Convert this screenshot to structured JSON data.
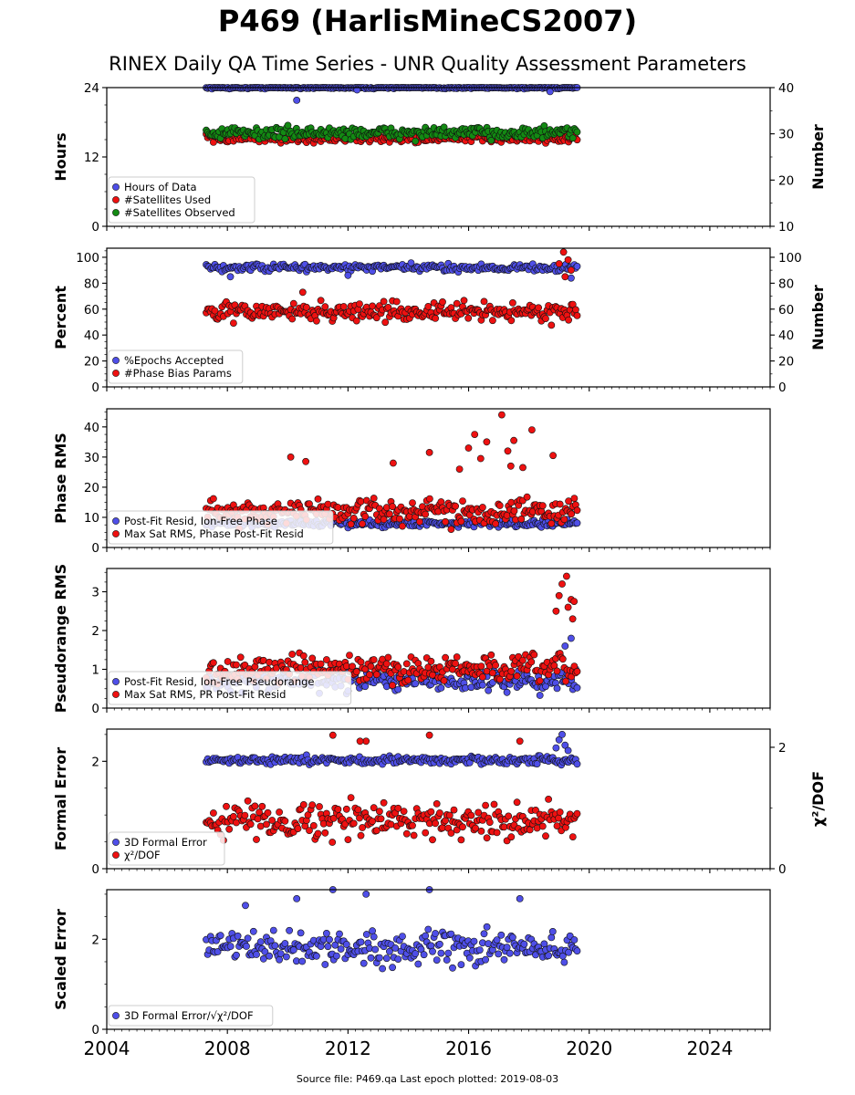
{
  "figure": {
    "title": "P469 (HarlisMineCS2007)",
    "subtitle": "RINEX Daily QA Time Series - UNR Quality Assessment Parameters",
    "footer": "Source file: P469.qa Last epoch plotted: 2019-08-03"
  },
  "colors": {
    "blue": "#4f4fe8",
    "red": "#ee1111",
    "green": "#138a13",
    "edge": "#111111"
  },
  "chart_data": [
    {
      "type": "scatter",
      "ylabel": "Hours",
      "ylabel_right": "Number",
      "ylim": [
        0,
        24
      ],
      "yticks": [
        0,
        12,
        24
      ],
      "ylim_right": [
        10,
        40
      ],
      "yticks_right": [
        10,
        20,
        30,
        40
      ],
      "xlim": [
        2004,
        2026
      ],
      "xticks": [
        2004,
        2008,
        2012,
        2016,
        2020,
        2024
      ],
      "grid": false,
      "legend": "lower-left",
      "series": [
        {
          "name": "Hours of Data",
          "color": "blue",
          "axis": "left",
          "start": 2007.3,
          "end": 2019.6,
          "base": 24,
          "spread": 0.15,
          "outliers": [
            [
              2010.3,
              21.8
            ],
            [
              2018.7,
              23.3
            ],
            [
              2012.3,
              23.6
            ]
          ]
        },
        {
          "name": "#Satellites Used",
          "color": "red",
          "axis": "right",
          "start": 2007.3,
          "end": 2019.6,
          "base": 29,
          "spread": 0.6,
          "outliers": []
        },
        {
          "name": "#Satellites Observed",
          "color": "green",
          "axis": "right",
          "start": 2007.3,
          "end": 2019.6,
          "base": 30.2,
          "spread": 0.9,
          "outliers": []
        }
      ]
    },
    {
      "type": "scatter",
      "ylabel": "Percent",
      "ylabel_right": "Number",
      "ylim": [
        0,
        107
      ],
      "yticks": [
        0,
        20,
        40,
        60,
        80,
        100
      ],
      "ylim_right": [
        0,
        107
      ],
      "yticks_right": [
        0,
        20,
        40,
        60,
        80,
        100
      ],
      "xlim": [
        2004,
        2026
      ],
      "xticks": [
        2004,
        2008,
        2012,
        2016,
        2020,
        2024
      ],
      "grid": false,
      "legend": "lower-left",
      "series": [
        {
          "name": "%Epochs Accepted",
          "color": "blue",
          "axis": "left",
          "start": 2007.3,
          "end": 2019.6,
          "base": 92,
          "spread": 2.0,
          "outliers": [
            [
              2008.1,
              85
            ],
            [
              2012.0,
              86
            ],
            [
              2019.4,
              84
            ]
          ]
        },
        {
          "name": "#Phase Bias Params",
          "color": "red",
          "axis": "right",
          "start": 2007.3,
          "end": 2019.6,
          "base": 58,
          "spread": 5.0,
          "outliers": [
            [
              2019.15,
              104
            ],
            [
              2019.3,
              98
            ],
            [
              2019.0,
              95
            ],
            [
              2019.4,
              90
            ],
            [
              2019.2,
              85
            ],
            [
              2010.5,
              73
            ]
          ]
        }
      ]
    },
    {
      "type": "scatter",
      "ylabel": "Phase RMS",
      "ylim": [
        0,
        46
      ],
      "yticks": [
        0,
        10,
        20,
        30,
        40
      ],
      "xlim": [
        2004,
        2026
      ],
      "xticks": [
        2004,
        2008,
        2012,
        2016,
        2020,
        2024
      ],
      "grid": false,
      "legend": "lower-left",
      "series": [
        {
          "name": "Post-Fit Resid, Ion-Free Phase",
          "color": "blue",
          "axis": "left",
          "start": 2007.3,
          "end": 2019.6,
          "base": 8,
          "spread": 0.8,
          "outliers": []
        },
        {
          "name": "Max Sat RMS, Phase Post-Fit Resid",
          "color": "red",
          "axis": "left",
          "start": 2007.3,
          "end": 2019.6,
          "base": 12,
          "spread": 3.0,
          "outliers": [
            [
              2017.1,
              44
            ],
            [
              2016.2,
              37.5
            ],
            [
              2018.1,
              39
            ],
            [
              2016.6,
              35
            ],
            [
              2017.5,
              35.5
            ],
            [
              2014.7,
              31.5
            ],
            [
              2016.0,
              33
            ],
            [
              2017.3,
              32
            ],
            [
              2010.1,
              30
            ],
            [
              2010.6,
              28.5
            ],
            [
              2016.4,
              29.5
            ],
            [
              2015.7,
              26
            ],
            [
              2017.4,
              27
            ],
            [
              2017.8,
              26.5
            ],
            [
              2018.8,
              30.5
            ],
            [
              2013.5,
              28
            ]
          ]
        }
      ]
    },
    {
      "type": "scatter",
      "ylabel": "Pseudorange RMS",
      "ylim": [
        0,
        3.6
      ],
      "yticks": [
        0,
        1,
        2,
        3
      ],
      "xlim": [
        2004,
        2026
      ],
      "xticks": [
        2004,
        2008,
        2012,
        2016,
        2020,
        2024
      ],
      "grid": false,
      "legend": "lower-left",
      "series": [
        {
          "name": "Post-Fit Resid, Ion-Free Pseudorange",
          "color": "blue",
          "axis": "left",
          "start": 2007.3,
          "end": 2019.6,
          "base": 0.7,
          "spread": 0.18,
          "outliers": [
            [
              2019.2,
              1.6
            ],
            [
              2019.4,
              1.8
            ]
          ]
        },
        {
          "name": "Max Sat RMS, PR Post-Fit Resid",
          "color": "red",
          "axis": "left",
          "start": 2007.3,
          "end": 2019.6,
          "base": 1.0,
          "spread": 0.25,
          "outliers": [
            [
              2019.25,
              3.4
            ],
            [
              2019.1,
              3.2
            ],
            [
              2019.0,
              2.9
            ],
            [
              2019.4,
              2.8
            ],
            [
              2019.5,
              2.75
            ],
            [
              2019.3,
              2.6
            ],
            [
              2018.9,
              2.5
            ],
            [
              2019.45,
              2.3
            ]
          ]
        }
      ]
    },
    {
      "type": "scatter",
      "ylabel": "Formal Error",
      "ylabel_right": "χ²/DOF",
      "ylim": [
        0,
        2.6
      ],
      "yticks": [
        0,
        2
      ],
      "ylim_right": [
        0,
        2.3
      ],
      "yticks_right": [
        0,
        2
      ],
      "xlim": [
        2004,
        2026
      ],
      "xticks": [
        2004,
        2008,
        2012,
        2016,
        2020,
        2024
      ],
      "grid": false,
      "legend": "lower-left",
      "series": [
        {
          "name": "3D Formal Error",
          "color": "blue",
          "axis": "left",
          "start": 2007.3,
          "end": 2019.6,
          "base": 2.02,
          "spread": 0.05,
          "outliers": [
            [
              2019.0,
              2.4
            ],
            [
              2019.1,
              2.5
            ],
            [
              2019.2,
              2.3
            ],
            [
              2018.9,
              2.25
            ],
            [
              2019.3,
              2.2
            ]
          ]
        },
        {
          "name": "χ²/DOF",
          "color": "red",
          "axis": "right",
          "start": 2007.3,
          "end": 2019.6,
          "base": 0.8,
          "spread": 0.2,
          "outliers": [
            [
              2011.5,
              2.2
            ],
            [
              2014.7,
              2.2
            ],
            [
              2012.6,
              2.1
            ],
            [
              2017.7,
              2.1
            ],
            [
              2012.4,
              2.1
            ]
          ]
        }
      ]
    },
    {
      "type": "scatter",
      "ylabel": "Scaled Error",
      "ylim": [
        0,
        3.1
      ],
      "yticks": [
        0,
        2
      ],
      "xlim": [
        2004,
        2026
      ],
      "xticks": [
        2004,
        2008,
        2012,
        2016,
        2020,
        2024
      ],
      "grid": false,
      "legend": "lower-left",
      "series": [
        {
          "name": "3D Formal Error/√χ²/DOF",
          "color": "blue",
          "axis": "left",
          "start": 2007.3,
          "end": 2019.6,
          "base": 1.8,
          "spread": 0.25,
          "outliers": [
            [
              2011.5,
              3.1
            ],
            [
              2014.7,
              3.1
            ],
            [
              2012.6,
              3.0
            ],
            [
              2017.7,
              2.9
            ],
            [
              2010.3,
              2.9
            ],
            [
              2008.6,
              2.75
            ]
          ]
        }
      ]
    }
  ]
}
